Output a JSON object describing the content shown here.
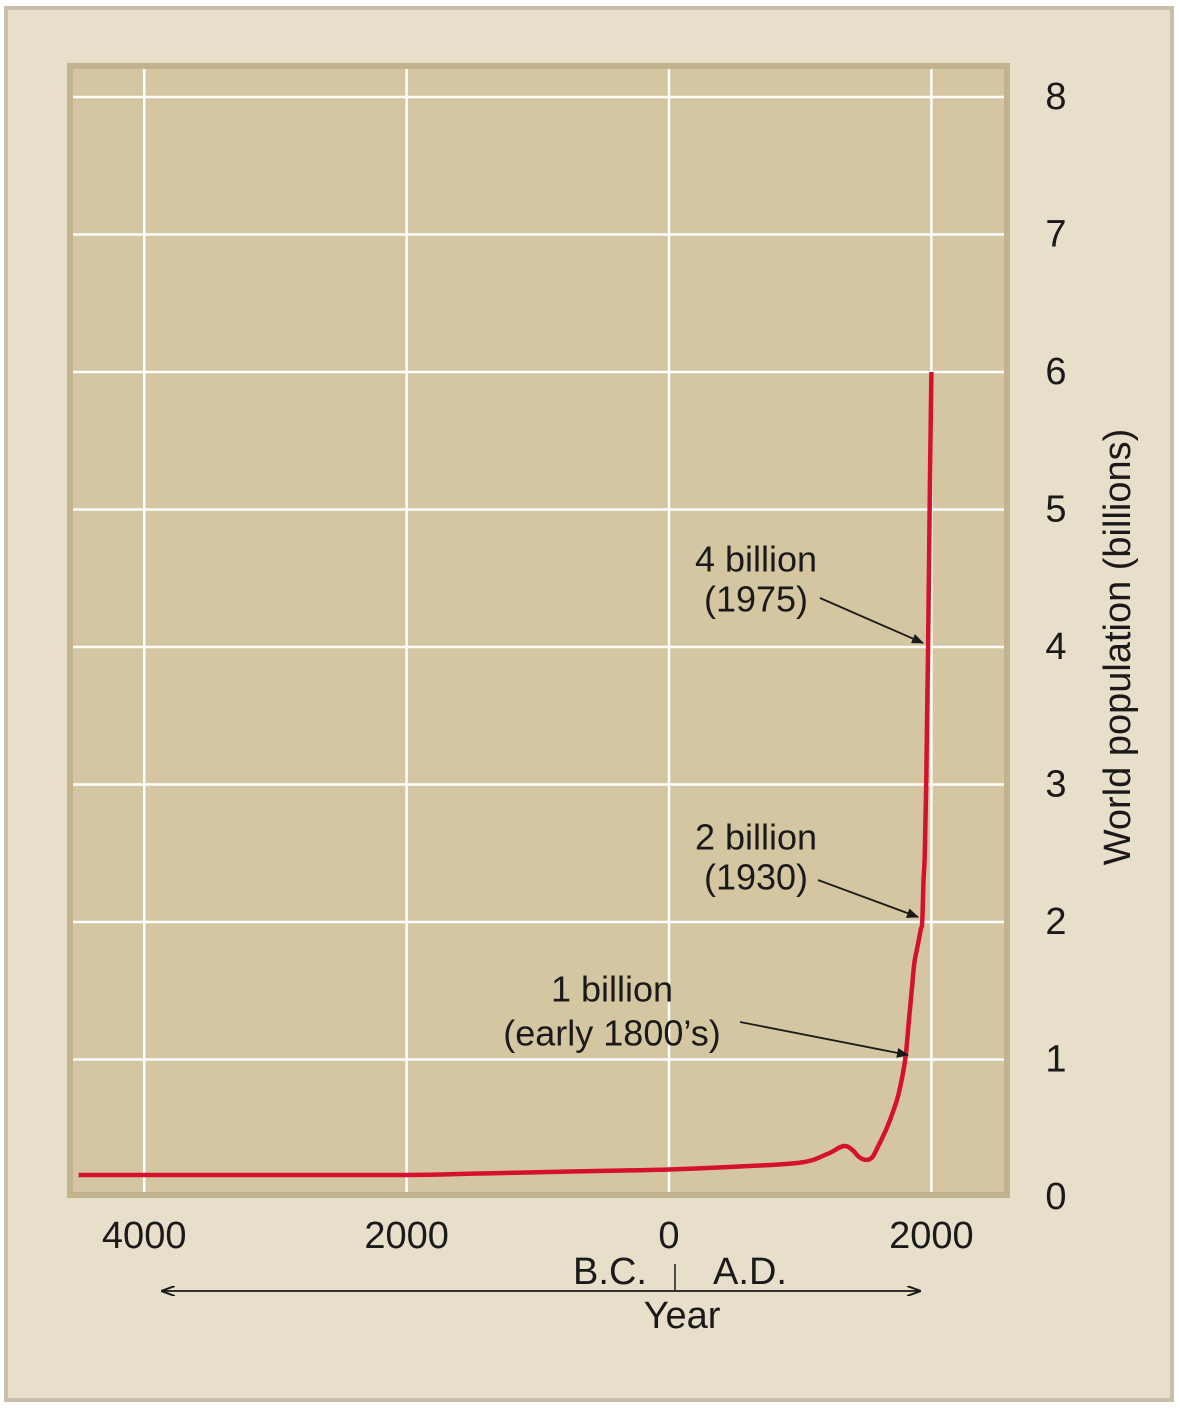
{
  "colors": {
    "frame": "#e8dfcb",
    "frame_border": "#c9bfa8",
    "plot_bg": "#d4c6a1",
    "plot_border": "#c2b38e",
    "grid": "#ffffff",
    "line": "#d4122b",
    "text": "#1a1a1a"
  },
  "chart_data": {
    "type": "line",
    "title": "",
    "xlabel": "Year",
    "ylabel": "World population (billions)",
    "xlim": [
      -4500,
      2600
    ],
    "ylim": [
      0,
      8
    ],
    "x_ticks": [
      {
        "value": -4000,
        "label": "4000"
      },
      {
        "value": -2000,
        "label": "2000"
      },
      {
        "value": 0,
        "label": "0"
      },
      {
        "value": 2000,
        "label": "2000"
      }
    ],
    "y_ticks": [
      {
        "value": 0,
        "label": "0"
      },
      {
        "value": 1,
        "label": "1"
      },
      {
        "value": 2,
        "label": "2"
      },
      {
        "value": 3,
        "label": "3"
      },
      {
        "value": 4,
        "label": "4"
      },
      {
        "value": 5,
        "label": "5"
      },
      {
        "value": 6,
        "label": "6"
      },
      {
        "value": 7,
        "label": "7"
      },
      {
        "value": 8,
        "label": "8"
      }
    ],
    "grid": true,
    "y_axis_side": "right",
    "era_labels": {
      "bc": "B.C.",
      "ad": "A.D."
    },
    "series": [
      {
        "color": "#d4122b",
        "x": [
          -4500,
          -4000,
          -3000,
          -2000,
          -1500,
          -1000,
          -500,
          0,
          500,
          1000,
          1200,
          1300,
          1350,
          1400,
          1450,
          1500,
          1550,
          1600,
          1650,
          1700,
          1750,
          1800,
          1830,
          1850,
          1870,
          1900,
          1920,
          1930,
          1940,
          1950,
          1960,
          1970,
          1975,
          1990,
          2000
        ],
        "y": [
          0.16,
          0.16,
          0.16,
          0.16,
          0.17,
          0.18,
          0.19,
          0.2,
          0.22,
          0.25,
          0.31,
          0.36,
          0.37,
          0.34,
          0.29,
          0.27,
          0.29,
          0.38,
          0.48,
          0.6,
          0.75,
          1.0,
          1.3,
          1.5,
          1.7,
          1.85,
          1.95,
          2.0,
          2.3,
          2.5,
          3.0,
          3.7,
          4.0,
          5.3,
          6.0
        ]
      }
    ],
    "annotations": [
      {
        "lines": [
          "4 billion",
          "(1975)"
        ],
        "x": 1975,
        "y": 4
      },
      {
        "lines": [
          "2 billion",
          "(1930)"
        ],
        "x": 1930,
        "y": 2
      },
      {
        "lines": [
          "1 billion",
          "(early 1800’s)"
        ],
        "x": 1800,
        "y": 1
      }
    ]
  }
}
